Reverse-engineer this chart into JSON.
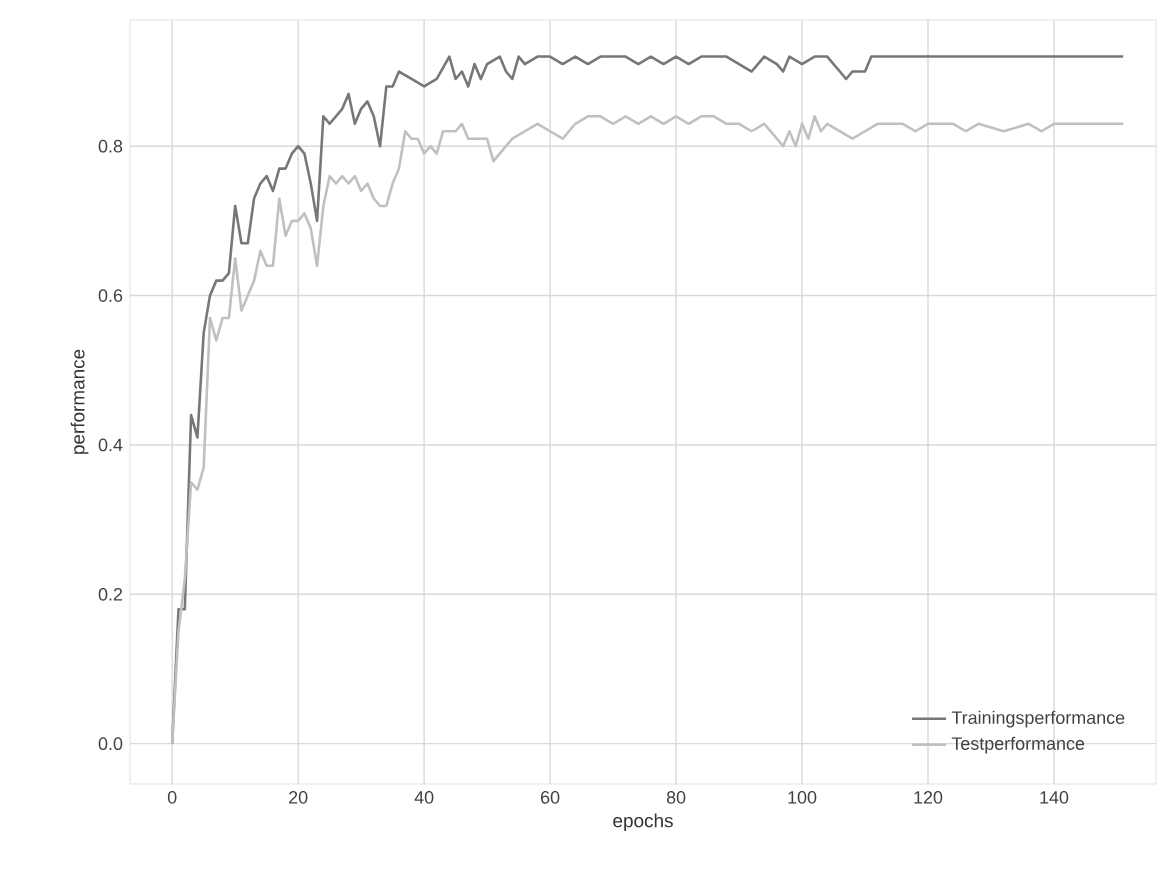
{
  "chart_data": {
    "type": "line",
    "xlabel": "epochs",
    "ylabel": "performance",
    "xlim": [
      -6.7,
      156.2
    ],
    "ylim": [
      -0.054,
      0.969
    ],
    "xticks": [
      0,
      20,
      40,
      60,
      80,
      100,
      120,
      140
    ],
    "yticks": [
      {
        "value": 0,
        "label": "0.0"
      },
      {
        "value": 0.2,
        "label": "0.2"
      },
      {
        "value": 0.4,
        "label": "0.4"
      },
      {
        "value": 0.6,
        "label": "0.6"
      },
      {
        "value": 0.8,
        "label": "0.8"
      }
    ],
    "grid": true,
    "legend": "bottom right",
    "line_style": "solid",
    "marker": "none",
    "series": [
      {
        "name": "Trainingsperformance",
        "color": "#777777",
        "x": [
          0,
          1,
          2,
          3,
          4,
          5,
          6,
          7,
          8,
          9,
          10,
          11,
          12,
          13,
          14,
          15,
          16,
          17,
          18,
          19,
          20,
          21,
          22,
          23,
          24,
          25,
          27,
          28,
          29,
          30,
          31,
          32,
          33,
          34,
          35,
          36,
          38,
          40,
          42,
          44,
          45,
          46,
          47,
          48,
          49,
          50,
          52,
          53,
          54,
          55,
          56,
          58,
          60,
          62,
          64,
          66,
          68,
          70,
          72,
          74,
          76,
          78,
          80,
          82,
          84,
          88,
          90,
          92,
          94,
          96,
          97,
          98,
          100,
          102,
          104,
          106,
          107,
          108,
          110,
          111,
          151
        ],
        "values": [
          0.0,
          0.18,
          0.18,
          0.44,
          0.41,
          0.55,
          0.6,
          0.62,
          0.62,
          0.63,
          0.72,
          0.67,
          0.67,
          0.73,
          0.75,
          0.76,
          0.74,
          0.77,
          0.77,
          0.79,
          0.8,
          0.79,
          0.75,
          0.7,
          0.84,
          0.83,
          0.85,
          0.87,
          0.83,
          0.85,
          0.86,
          0.84,
          0.8,
          0.88,
          0.88,
          0.9,
          0.89,
          0.88,
          0.89,
          0.92,
          0.89,
          0.9,
          0.88,
          0.91,
          0.89,
          0.91,
          0.92,
          0.9,
          0.89,
          0.92,
          0.91,
          0.92,
          0.92,
          0.91,
          0.92,
          0.91,
          0.92,
          0.92,
          0.92,
          0.91,
          0.92,
          0.91,
          0.92,
          0.91,
          0.92,
          0.92,
          0.91,
          0.9,
          0.92,
          0.91,
          0.9,
          0.92,
          0.91,
          0.92,
          0.92,
          0.9,
          0.89,
          0.9,
          0.9,
          0.92,
          0.92
        ]
      },
      {
        "name": "Testperformance",
        "color": "#c0c0c0",
        "x": [
          0,
          1,
          2,
          3,
          4,
          5,
          6,
          7,
          8,
          9,
          10,
          11,
          12,
          13,
          14,
          15,
          16,
          17,
          18,
          19,
          20,
          21,
          22,
          23,
          24,
          25,
          26,
          27,
          28,
          29,
          30,
          31,
          32,
          33,
          34,
          35,
          36,
          37,
          38,
          39,
          40,
          41,
          42,
          43,
          45,
          46,
          47,
          49,
          50,
          51,
          52,
          54,
          56,
          58,
          60,
          62,
          64,
          66,
          68,
          70,
          72,
          74,
          76,
          78,
          80,
          82,
          84,
          86,
          88,
          90,
          92,
          94,
          96,
          97,
          98,
          99,
          100,
          101,
          102,
          103,
          104,
          106,
          108,
          110,
          112,
          114,
          116,
          118,
          120,
          124,
          126,
          128,
          132,
          136,
          138,
          140,
          151
        ],
        "values": [
          0.0,
          0.15,
          0.22,
          0.35,
          0.34,
          0.37,
          0.57,
          0.54,
          0.57,
          0.57,
          0.65,
          0.58,
          0.6,
          0.62,
          0.66,
          0.64,
          0.64,
          0.73,
          0.68,
          0.7,
          0.7,
          0.71,
          0.69,
          0.64,
          0.72,
          0.76,
          0.75,
          0.76,
          0.75,
          0.76,
          0.74,
          0.75,
          0.73,
          0.72,
          0.72,
          0.75,
          0.77,
          0.82,
          0.81,
          0.81,
          0.79,
          0.8,
          0.79,
          0.82,
          0.82,
          0.83,
          0.81,
          0.81,
          0.81,
          0.78,
          0.79,
          0.81,
          0.82,
          0.83,
          0.82,
          0.81,
          0.83,
          0.84,
          0.84,
          0.83,
          0.84,
          0.83,
          0.84,
          0.83,
          0.84,
          0.83,
          0.84,
          0.84,
          0.83,
          0.83,
          0.82,
          0.83,
          0.81,
          0.8,
          0.82,
          0.8,
          0.83,
          0.81,
          0.84,
          0.82,
          0.83,
          0.82,
          0.81,
          0.82,
          0.83,
          0.83,
          0.83,
          0.82,
          0.83,
          0.83,
          0.82,
          0.83,
          0.82,
          0.83,
          0.82,
          0.83,
          0.83
        ]
      }
    ]
  }
}
